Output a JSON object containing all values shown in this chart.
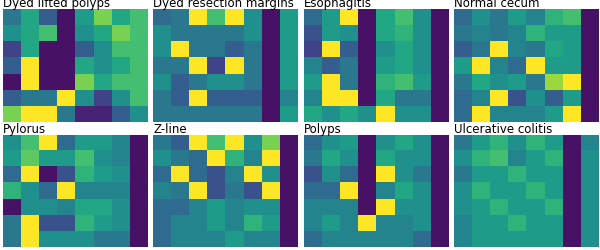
{
  "titles": [
    "Dyed lifted polyps",
    "Dyed resection margins",
    "Esophagitis",
    "Normal cecum",
    "Pylorus",
    "Z-line",
    "Polyps",
    "Ulcerative colitis"
  ],
  "cmap": "viridis",
  "figsize": [
    6.0,
    2.51
  ],
  "dpi": 100,
  "title_fontsize": 8.5
}
